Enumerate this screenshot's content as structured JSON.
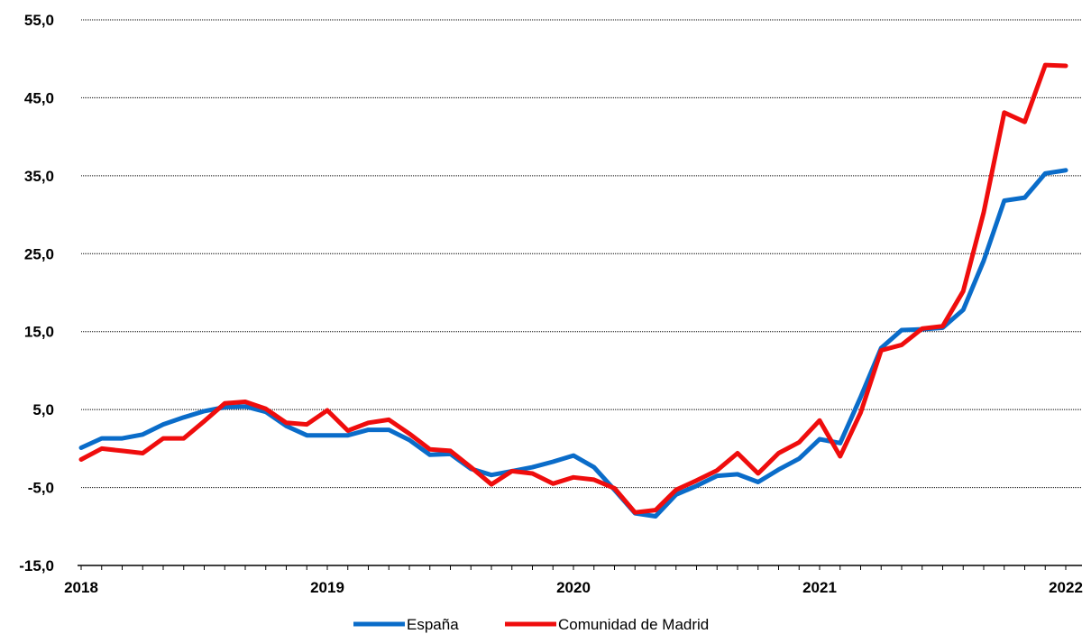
{
  "chart_data": {
    "type": "line",
    "title": "",
    "xlabel": "",
    "ylabel": "",
    "ylim": [
      -15,
      55
    ],
    "yticks": [
      "55,0",
      "45,0",
      "35,0",
      "25,0",
      "15,0",
      "5,0",
      "-5,0",
      "-15,0"
    ],
    "ytick_values": [
      55,
      45,
      35,
      25,
      15,
      5,
      -5,
      -15
    ],
    "xticks": [
      "2018",
      "2019",
      "2020",
      "2021",
      "2022"
    ],
    "grid": "horizontal dotted",
    "legend_position": "bottom",
    "x_start": "2018-01",
    "x": [
      "2018-01",
      "2018-02",
      "2018-03",
      "2018-04",
      "2018-05",
      "2018-06",
      "2018-07",
      "2018-08",
      "2018-09",
      "2018-10",
      "2018-11",
      "2018-12",
      "2019-01",
      "2019-02",
      "2019-03",
      "2019-04",
      "2019-05",
      "2019-06",
      "2019-07",
      "2019-08",
      "2019-09",
      "2019-10",
      "2019-11",
      "2019-12",
      "2020-01",
      "2020-02",
      "2020-03",
      "2020-04",
      "2020-05",
      "2020-06",
      "2020-07",
      "2020-08",
      "2020-09",
      "2020-10",
      "2020-11",
      "2020-12",
      "2021-01",
      "2021-02",
      "2021-03",
      "2021-04",
      "2021-05",
      "2021-06",
      "2021-07",
      "2021-08",
      "2021-09",
      "2021-10",
      "2021-11",
      "2021-12",
      "2022-01"
    ],
    "series": [
      {
        "name": "España",
        "color": "#0a6cc9",
        "values": [
          0.1,
          1.3,
          1.3,
          1.8,
          3.1,
          4.0,
          4.8,
          5.3,
          5.4,
          4.7,
          2.9,
          1.7,
          1.7,
          1.7,
          2.4,
          2.4,
          1.1,
          -0.8,
          -0.7,
          -2.6,
          -3.4,
          -2.9,
          -2.4,
          -1.7,
          -0.9,
          -2.4,
          -5.3,
          -8.3,
          -8.7,
          -5.9,
          -4.8,
          -3.5,
          -3.3,
          -4.3,
          -2.7,
          -1.3,
          1.2,
          0.7,
          6.6,
          12.9,
          15.2,
          15.3,
          15.5,
          17.8,
          24.1,
          31.8,
          32.2,
          35.3,
          35.7
        ]
      },
      {
        "name": "Comunidad de Madrid",
        "color": "#ef0d0d",
        "values": [
          -1.4,
          0.0,
          -0.3,
          -0.6,
          1.3,
          1.3,
          3.5,
          5.8,
          6.0,
          5.1,
          3.3,
          3.1,
          4.9,
          2.3,
          3.3,
          3.7,
          1.9,
          -0.1,
          -0.3,
          -2.4,
          -4.6,
          -2.9,
          -3.2,
          -4.5,
          -3.7,
          -4.0,
          -5.1,
          -8.2,
          -7.9,
          -5.3,
          -4.1,
          -2.8,
          -0.6,
          -3.2,
          -0.6,
          0.8,
          3.6,
          -1.0,
          4.6,
          12.6,
          13.3,
          15.4,
          15.7,
          20.2,
          30.3,
          43.1,
          41.9,
          49.2,
          49.1
        ]
      }
    ]
  }
}
